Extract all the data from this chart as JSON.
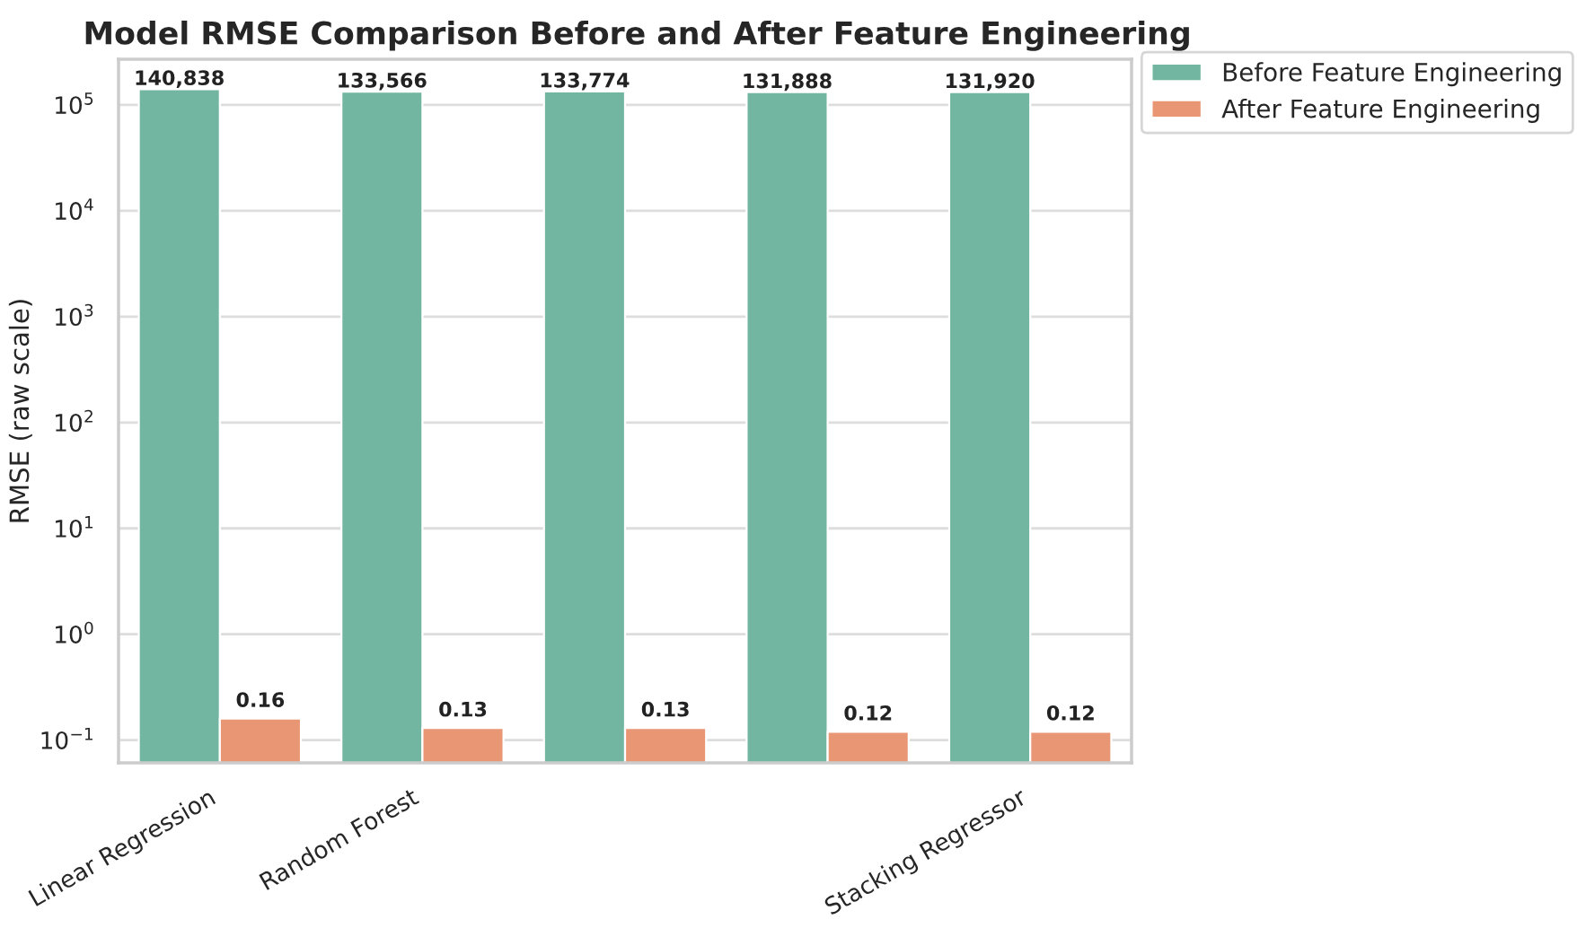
{
  "chart_data": {
    "type": "bar",
    "title": "Model RMSE Comparison Before and After Feature Engineering",
    "ylabel": "RMSE (raw scale)",
    "categories": [
      "Linear Regression",
      "Random Forest",
      null,
      null,
      "Stacking Regressor"
    ],
    "series": [
      {
        "name": "Before Feature Engineering",
        "color": "#72b6a2",
        "values": [
          140838,
          133566,
          133774,
          131888,
          131920
        ],
        "value_labels": [
          "140,838",
          "133,566",
          "133,774",
          "131,888",
          "131,920"
        ]
      },
      {
        "name": "After Feature Engineering",
        "color": "#e99675",
        "values": [
          0.16,
          0.13,
          0.13,
          0.12,
          0.12
        ],
        "value_labels": [
          "0.16",
          "0.13",
          "0.13",
          "0.12",
          "0.12"
        ]
      }
    ],
    "log": "y",
    "ylim": [
      0.061,
      270000
    ],
    "yticks": [
      {
        "value": 0.1,
        "label": "10$^{−1}$"
      },
      {
        "value": 1,
        "label": "10$^{0}$"
      },
      {
        "value": 10,
        "label": "10$^{1}$"
      },
      {
        "value": 100,
        "label": "10$^{2}$"
      },
      {
        "value": 1000,
        "label": "10$^{3}$"
      },
      {
        "value": 10000,
        "label": "10$^{4}$"
      },
      {
        "value": 100000,
        "label": "10$^{5}$"
      }
    ],
    "grid": "y",
    "legend": "top right"
  }
}
